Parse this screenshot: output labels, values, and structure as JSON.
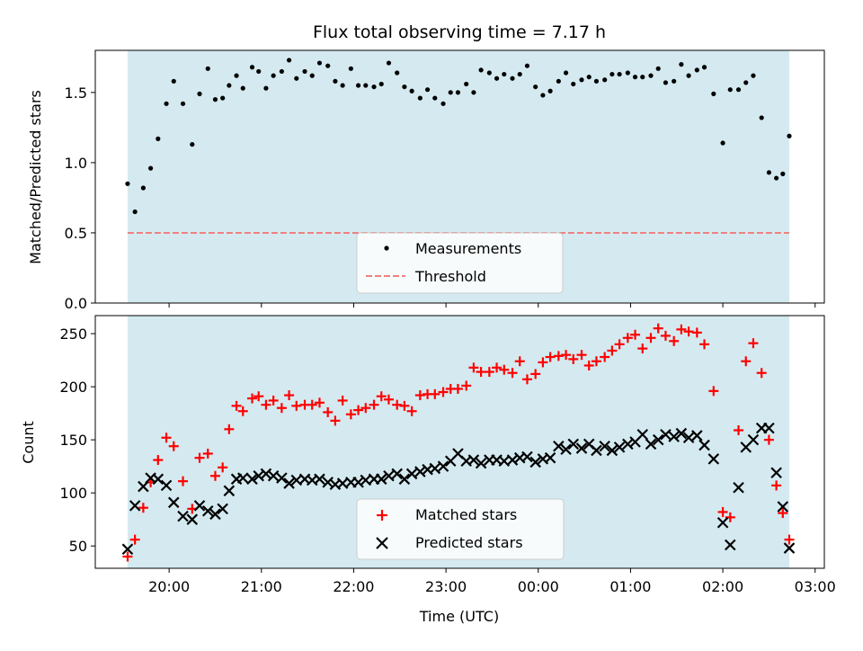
{
  "chart_data": {
    "title": "Flux total observing time = 7.17 h",
    "xlabel": "Time (UTC)",
    "x_tick_labels": [
      "20:00",
      "21:00",
      "22:00",
      "23:00",
      "00:00",
      "01:00",
      "02:00",
      "03:00"
    ],
    "x_ticks_hours": [
      20,
      21,
      22,
      23,
      24,
      25,
      26,
      27
    ],
    "xlim_hours": [
      19.2,
      27.1
    ],
    "shaded_span_hours": [
      19.55,
      26.72
    ],
    "colors": {
      "shade": "#d4eaf0",
      "measurements": "#000000",
      "threshold": "#f08080",
      "matched": "#ff0000",
      "predicted": "#000000"
    },
    "top": {
      "type": "scatter",
      "ylabel": "Matched/Predicted stars",
      "ylim": [
        0,
        1.8
      ],
      "yticks": [
        "0.0",
        "0.5",
        "1.0",
        "1.5"
      ],
      "threshold": 0.5,
      "legend": [
        "Measurements",
        "Threshold"
      ],
      "series": [
        {
          "name": "Measurements",
          "x": [
            19.55,
            19.63,
            19.72,
            19.8,
            19.88,
            19.97,
            20.05,
            20.15,
            20.25,
            20.33,
            20.42,
            20.5,
            20.58,
            20.65,
            20.73,
            20.8,
            20.9,
            20.97,
            21.05,
            21.13,
            21.22,
            21.3,
            21.38,
            21.47,
            21.55,
            21.63,
            21.72,
            21.8,
            21.88,
            21.97,
            22.05,
            22.13,
            22.22,
            22.3,
            22.38,
            22.47,
            22.55,
            22.63,
            22.72,
            22.8,
            22.88,
            22.97,
            23.05,
            23.13,
            23.22,
            23.3,
            23.38,
            23.47,
            23.55,
            23.63,
            23.72,
            23.8,
            23.88,
            23.97,
            24.05,
            24.13,
            24.22,
            24.3,
            24.38,
            24.47,
            24.55,
            24.63,
            24.72,
            24.8,
            24.88,
            24.97,
            25.05,
            25.13,
            25.22,
            25.3,
            25.38,
            25.47,
            25.55,
            25.63,
            25.72,
            25.8,
            25.9,
            26.0,
            26.08,
            26.17,
            26.25,
            26.33,
            26.42,
            26.5,
            26.58,
            26.65,
            26.72
          ],
          "values": [
            0.85,
            0.65,
            0.82,
            0.96,
            1.17,
            1.42,
            1.58,
            1.42,
            1.13,
            1.49,
            1.67,
            1.45,
            1.46,
            1.55,
            1.62,
            1.53,
            1.68,
            1.65,
            1.53,
            1.62,
            1.65,
            1.73,
            1.6,
            1.65,
            1.62,
            1.71,
            1.69,
            1.58,
            1.55,
            1.67,
            1.55,
            1.55,
            1.54,
            1.56,
            1.71,
            1.64,
            1.54,
            1.51,
            1.46,
            1.52,
            1.46,
            1.42,
            1.5,
            1.5,
            1.56,
            1.5,
            1.66,
            1.64,
            1.6,
            1.63,
            1.6,
            1.63,
            1.69,
            1.54,
            1.48,
            1.51,
            1.58,
            1.64,
            1.56,
            1.59,
            1.61,
            1.58,
            1.59,
            1.63,
            1.63,
            1.64,
            1.61,
            1.61,
            1.62,
            1.67,
            1.57,
            1.58,
            1.7,
            1.62,
            1.66,
            1.68,
            1.49,
            1.14,
            1.52,
            1.52,
            1.57,
            1.62,
            1.32,
            0.93,
            0.89,
            0.92,
            1.19
          ]
        }
      ]
    },
    "bottom": {
      "type": "scatter",
      "ylabel": "Count",
      "ylim": [
        29,
        267
      ],
      "yticks": [
        "50",
        "100",
        "150",
        "200",
        "250"
      ],
      "legend": [
        "Matched stars",
        "Predicted stars"
      ],
      "series": [
        {
          "name": "Matched stars",
          "x": [
            19.55,
            19.63,
            19.72,
            19.8,
            19.88,
            19.97,
            20.05,
            20.15,
            20.25,
            20.33,
            20.42,
            20.5,
            20.58,
            20.65,
            20.73,
            20.8,
            20.9,
            20.97,
            21.05,
            21.13,
            21.22,
            21.3,
            21.38,
            21.47,
            21.55,
            21.63,
            21.72,
            21.8,
            21.88,
            21.97,
            22.05,
            22.13,
            22.22,
            22.3,
            22.38,
            22.47,
            22.55,
            22.63,
            22.72,
            22.8,
            22.88,
            22.97,
            23.05,
            23.13,
            23.22,
            23.3,
            23.38,
            23.47,
            23.55,
            23.63,
            23.72,
            23.8,
            23.88,
            23.97,
            24.05,
            24.13,
            24.22,
            24.3,
            24.38,
            24.47,
            24.55,
            24.63,
            24.72,
            24.8,
            24.88,
            24.97,
            25.05,
            25.13,
            25.22,
            25.3,
            25.38,
            25.47,
            25.55,
            25.63,
            25.72,
            25.8,
            25.9,
            26.0,
            26.08,
            26.17,
            26.25,
            26.33,
            26.42,
            26.5,
            26.58,
            26.65,
            26.72
          ],
          "values": [
            40,
            56,
            86,
            110,
            131,
            152,
            144,
            111,
            85,
            133,
            137,
            116,
            124,
            160,
            182,
            177,
            189,
            191,
            183,
            187,
            180,
            192,
            182,
            183,
            183,
            185,
            176,
            168,
            187,
            174,
            178,
            180,
            183,
            191,
            188,
            183,
            182,
            177,
            192,
            193,
            193,
            195,
            198,
            198,
            201,
            218,
            214,
            214,
            218,
            216,
            213,
            224,
            207,
            212,
            223,
            228,
            229,
            230,
            226,
            230,
            220,
            224,
            228,
            234,
            240,
            246,
            249,
            236,
            246,
            255,
            248,
            243,
            254,
            252,
            251,
            240,
            196,
            82,
            77,
            159,
            224,
            241,
            213,
            150,
            107,
            81,
            56
          ]
        },
        {
          "name": "Predicted stars",
          "x": [
            19.55,
            19.63,
            19.72,
            19.8,
            19.88,
            19.97,
            20.05,
            20.15,
            20.25,
            20.33,
            20.42,
            20.5,
            20.58,
            20.65,
            20.73,
            20.8,
            20.9,
            20.97,
            21.05,
            21.13,
            21.22,
            21.3,
            21.38,
            21.47,
            21.55,
            21.63,
            21.72,
            21.8,
            21.88,
            21.97,
            22.05,
            22.13,
            22.22,
            22.3,
            22.38,
            22.47,
            22.55,
            22.63,
            22.72,
            22.8,
            22.88,
            22.97,
            23.05,
            23.13,
            23.22,
            23.3,
            23.38,
            23.47,
            23.55,
            23.63,
            23.72,
            23.8,
            23.88,
            23.97,
            24.05,
            24.13,
            24.22,
            24.3,
            24.38,
            24.47,
            24.55,
            24.63,
            24.72,
            24.8,
            24.88,
            24.97,
            25.05,
            25.13,
            25.22,
            25.3,
            25.38,
            25.47,
            25.55,
            25.63,
            25.72,
            25.8,
            25.9,
            26.0,
            26.08,
            26.17,
            26.25,
            26.33,
            26.42,
            26.5,
            26.58,
            26.65,
            26.72
          ],
          "values": [
            47,
            88,
            106,
            114,
            113,
            107,
            91,
            78,
            75,
            88,
            83,
            80,
            85,
            102,
            113,
            114,
            113,
            116,
            118,
            116,
            114,
            109,
            112,
            113,
            112,
            113,
            110,
            108,
            109,
            110,
            110,
            112,
            113,
            113,
            116,
            118,
            113,
            118,
            120,
            122,
            123,
            125,
            130,
            137,
            130,
            131,
            128,
            131,
            131,
            130,
            131,
            133,
            134,
            129,
            132,
            133,
            144,
            141,
            146,
            142,
            146,
            140,
            144,
            140,
            143,
            146,
            148,
            155,
            146,
            150,
            155,
            153,
            156,
            152,
            154,
            145,
            132,
            72,
            51,
            105,
            143,
            150,
            161,
            161,
            119,
            87,
            48
          ]
        }
      ]
    }
  }
}
